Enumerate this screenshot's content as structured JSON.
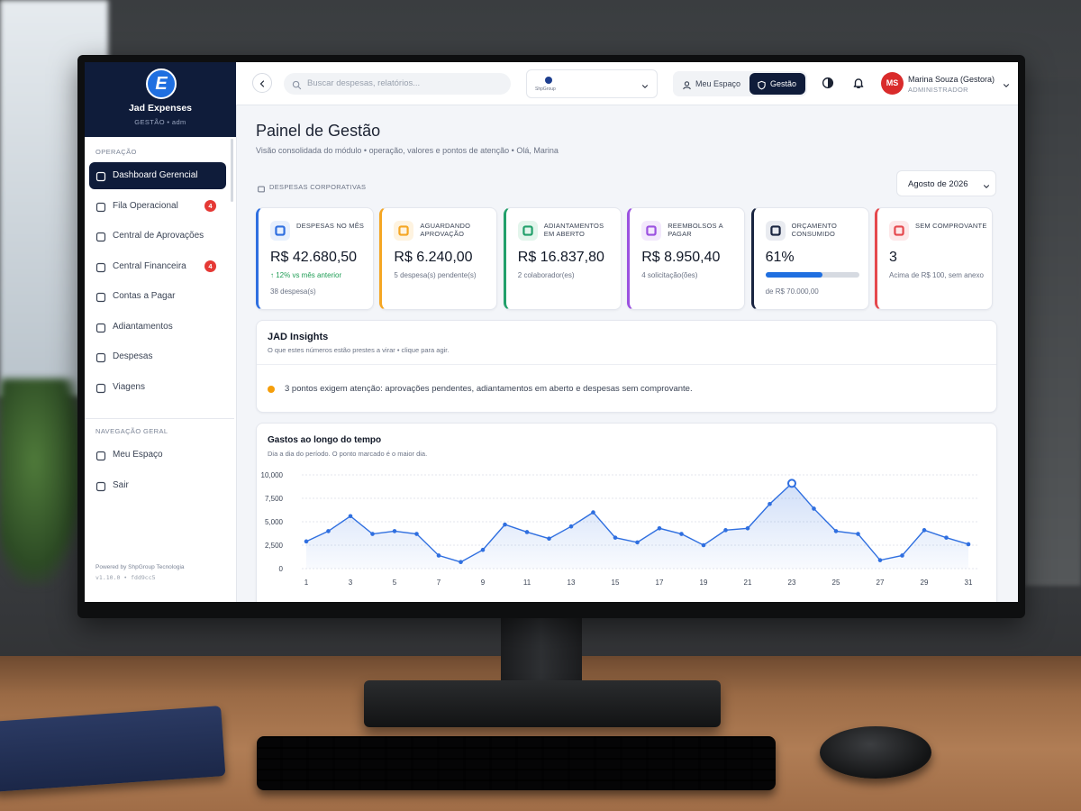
{
  "sidebar": {
    "brand_mark": "E",
    "brand": "Jad Expenses",
    "subtitle": "GESTÃO • adm",
    "sections": [
      {
        "title": "OPERAÇÃO",
        "items": [
          {
            "label": "Dashboard Gerencial"
          },
          {
            "label": "Fila Operacional",
            "badge": "4"
          },
          {
            "label": "Central de Aprovações"
          },
          {
            "label": "Central Financeira",
            "badge": "4"
          },
          {
            "label": "Contas a Pagar"
          },
          {
            "label": "Adiantamentos"
          },
          {
            "label": "Despesas"
          },
          {
            "label": "Viagens"
          }
        ]
      },
      {
        "title": "NAVEGAÇÃO GERAL",
        "items": [
          {
            "label": "Meu Espaço"
          },
          {
            "label": "Sair"
          }
        ]
      }
    ],
    "powered_by": "Powered by ShpGroup Tecnologia",
    "version": "v1.10.0 • fdd9cc5"
  },
  "header": {
    "search_placeholder": "Buscar despesas, relatórios...",
    "company_logo": "ShpGroup",
    "tabs": [
      "Meu Espaço",
      "Gestão"
    ],
    "avatar": "MS",
    "user_name": "Marina Souza (Gestora)",
    "user_role": "ADMINISTRADOR"
  },
  "page": {
    "title": "Painel de Gestão",
    "subtitle": "Visão consolidada do módulo • operação, valores e pontos de atenção • Olá, Marina",
    "section_label": "DESPESAS CORPORATIVAS",
    "period": "Agosto de 2026"
  },
  "kpis": [
    {
      "label": "DESPESAS NO MÊS",
      "value": "R$ 42.680,50",
      "trend": "↑ 12% vs mês anterior",
      "detail": "38 despesa(s)"
    },
    {
      "label": "AGUARDANDO APROVAÇÃO",
      "value": "R$ 6.240,00",
      "detail": "5 despesa(s) pendente(s)"
    },
    {
      "label": "ADIANTAMENTOS EM ABERTO",
      "value": "R$ 16.837,80",
      "detail": "2 colaborador(es)"
    },
    {
      "label": "REEMBOLSOS A PAGAR",
      "value": "R$ 8.950,40",
      "detail": "4 solicitação(ões)"
    },
    {
      "label": "ORÇAMENTO CONSUMIDO",
      "value": "61%",
      "progress": 61,
      "detail": "de R$ 70.000,00"
    },
    {
      "label": "SEM COMPROVANTE",
      "value": "3",
      "detail": "Acima de R$ 100, sem anexo"
    }
  ],
  "insights": {
    "title": "JAD Insights",
    "subtitle": "O que estes números estão prestes a virar • clique para agir.",
    "message": "3 pontos exigem atenção: aprovações pendentes, adiantamentos em aberto e despesas sem comprovante."
  },
  "chart_data": {
    "type": "line",
    "title": "Gastos ao longo do tempo",
    "subtitle": "Dia a dia do período. O ponto marcado é o maior dia.",
    "x": [
      1,
      2,
      3,
      4,
      5,
      6,
      7,
      8,
      9,
      10,
      11,
      12,
      13,
      14,
      15,
      16,
      17,
      18,
      19,
      20,
      21,
      22,
      23,
      24,
      25,
      26,
      27,
      28,
      29,
      30,
      31
    ],
    "values": [
      2900,
      4000,
      5600,
      3700,
      4000,
      3700,
      1400,
      700,
      2000,
      4700,
      3900,
      3200,
      4500,
      6000,
      3300,
      2800,
      4300,
      3700,
      2500,
      4100,
      4300,
      6900,
      9100,
      6400,
      4000,
      3700,
      900,
      1400,
      4100,
      3300,
      2600
    ],
    "color": "#2f6fe0",
    "xlim": [
      1,
      31
    ],
    "xticks": [
      1,
      3,
      5,
      7,
      9,
      11,
      13,
      15,
      17,
      19,
      21,
      23,
      25,
      27,
      29,
      31
    ],
    "ylim": [
      0,
      10000
    ],
    "yticks": [
      0,
      {
        "value": 2500,
        "label": "2,500"
      },
      {
        "value": 5000,
        "label": "5,000"
      },
      {
        "value": 7500,
        "label": "7,500"
      },
      {
        "value": 10000,
        "label": "10,000"
      }
    ],
    "grid": true
  }
}
